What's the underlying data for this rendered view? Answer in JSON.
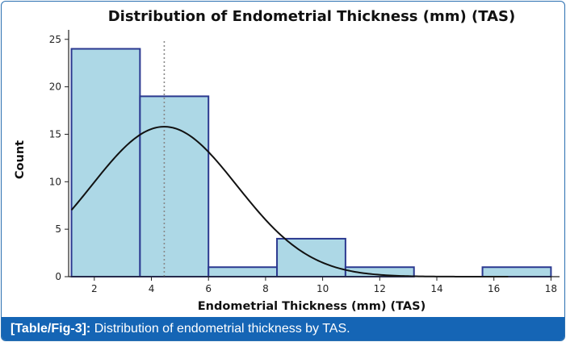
{
  "chart_data": {
    "type": "bar",
    "title": "Distribution of Endometrial Thickness (mm) (TAS)",
    "xlabel": "Endometrial Thickness (mm) (TAS)",
    "ylabel": "Count",
    "xlim": [
      1.1,
      18.3
    ],
    "ylim": [
      0,
      26
    ],
    "xticks": [
      2,
      4,
      6,
      8,
      10,
      12,
      14,
      16,
      18
    ],
    "yticks": [
      0,
      5,
      10,
      15,
      20,
      25
    ],
    "bins": [
      {
        "x0": 1.2,
        "x1": 3.6,
        "count": 24
      },
      {
        "x0": 3.6,
        "x1": 6.0,
        "count": 19
      },
      {
        "x0": 6.0,
        "x1": 8.4,
        "count": 1
      },
      {
        "x0": 8.4,
        "x1": 10.8,
        "count": 4
      },
      {
        "x0": 10.8,
        "x1": 13.2,
        "count": 1
      },
      {
        "x0": 13.2,
        "x1": 15.6,
        "count": 0
      },
      {
        "x0": 15.6,
        "x1": 18.0,
        "count": 1
      }
    ],
    "mean_line_x": 4.45,
    "density_curve": {
      "mean": 4.45,
      "sd": 2.55,
      "peak": 15.8,
      "x_range": [
        1.2,
        16.5
      ]
    },
    "grid": false,
    "colors": {
      "bar_fill": "#add8e6",
      "bar_edge": "#2b3990",
      "curve": "#111111",
      "mean_line": "#888888"
    }
  },
  "caption": {
    "label": "[Table/Fig-3]:",
    "text": "Distribution of endometrial thickness by TAS."
  }
}
